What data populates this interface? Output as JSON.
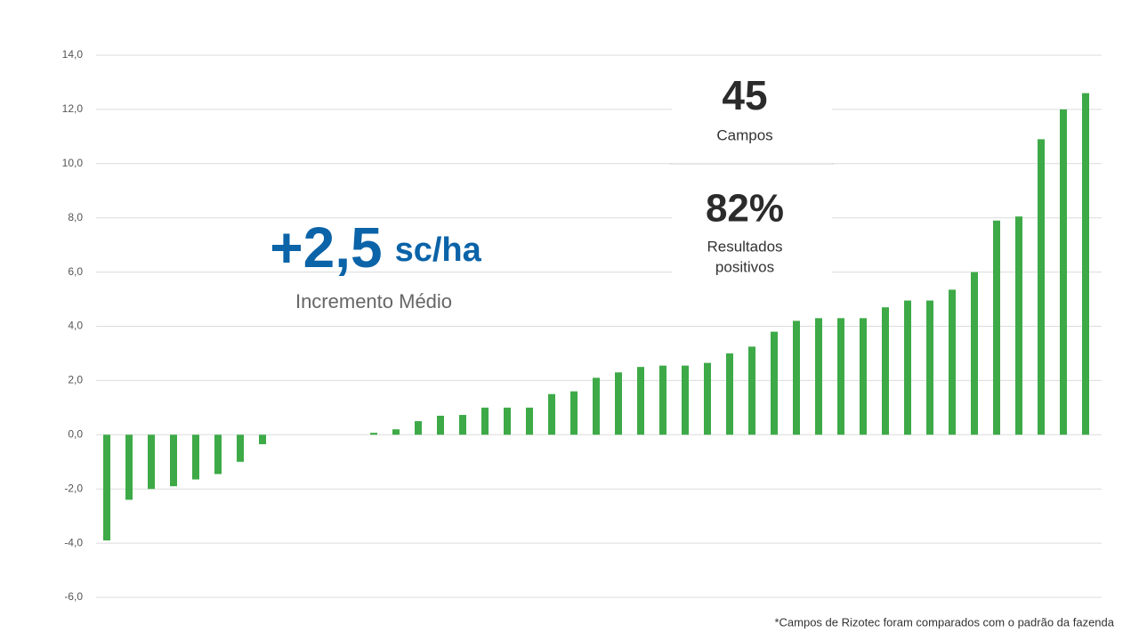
{
  "chart_data": {
    "type": "bar",
    "categories": [
      null,
      null,
      null,
      null,
      null,
      null,
      null,
      null,
      null,
      null,
      null,
      null,
      null,
      null,
      null,
      null,
      null,
      null,
      null,
      null,
      null,
      null,
      null,
      null,
      null,
      null,
      null,
      null,
      null,
      null,
      null,
      null,
      null,
      null,
      null,
      null,
      null,
      null,
      null,
      null,
      null,
      null,
      null,
      null,
      null
    ],
    "values": [
      -3.9,
      -2.4,
      -2.0,
      -1.9,
      -1.65,
      -1.45,
      -1.0,
      -0.35,
      0,
      0,
      0,
      0,
      0.07,
      0.2,
      0.5,
      0.7,
      0.73,
      1.0,
      1.0,
      1.0,
      1.5,
      1.6,
      2.1,
      2.3,
      2.5,
      2.55,
      2.55,
      2.65,
      3.0,
      3.25,
      3.8,
      4.2,
      4.3,
      4.3,
      4.3,
      4.7,
      4.95,
      4.95,
      5.35,
      6.0,
      7.9,
      8.05,
      10.9,
      12.0,
      12.6
    ],
    "color": "#3daa47",
    "ylim": [
      -6,
      14
    ],
    "yticks": [
      {
        "value": -6,
        "label": "-6,0"
      },
      {
        "value": -4,
        "label": "-4,0"
      },
      {
        "value": -2,
        "label": "-2,0"
      },
      {
        "value": 0,
        "label": "0,0"
      },
      {
        "value": 2,
        "label": "2,0"
      },
      {
        "value": 4,
        "label": "4,0"
      },
      {
        "value": 6,
        "label": "6,0"
      },
      {
        "value": 8,
        "label": "8,0"
      },
      {
        "value": 10,
        "label": "10,0"
      },
      {
        "value": 12,
        "label": "12,0"
      },
      {
        "value": 14,
        "label": "14,0"
      }
    ],
    "grid": true,
    "annotations": {
      "highlight_value": "+2,5",
      "highlight_unit": "sc/ha",
      "highlight_caption": "Incremento Médio",
      "fields_count": "45",
      "fields_label": "Campos",
      "positive_share": "82%",
      "positive_label": [
        "Resultados",
        "positivos"
      ],
      "footnote": "*Campos de Rizotec foram comparados com o padrão da fazenda"
    }
  }
}
